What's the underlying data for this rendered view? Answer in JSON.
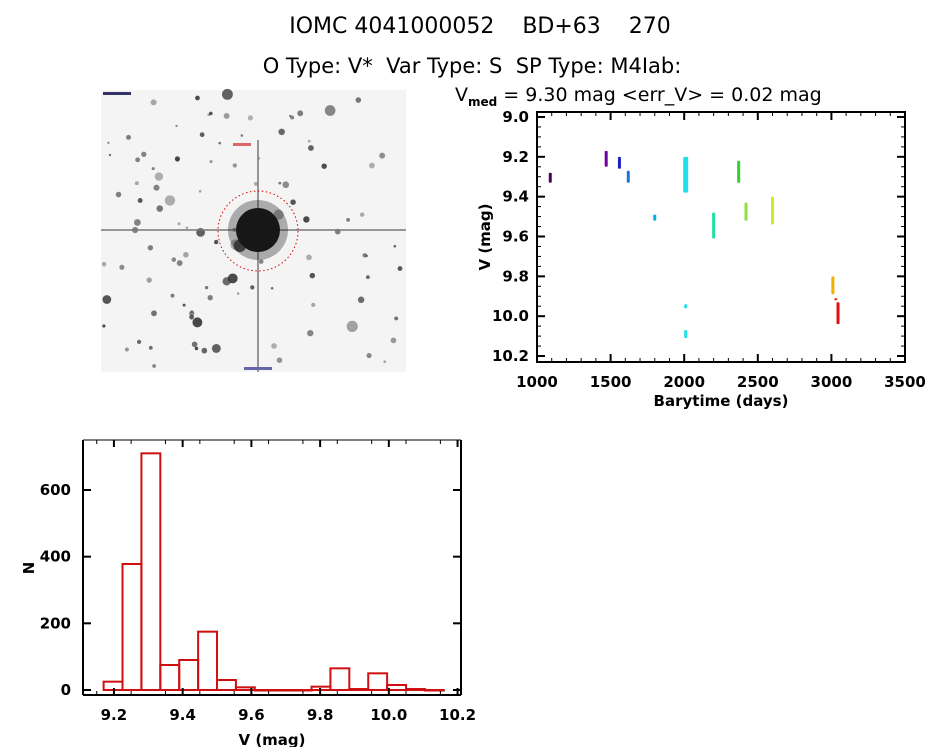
{
  "header": {
    "title": "IOMC 4041000052    BD+63    270",
    "subtitle": "O Type: V*  Var Type: S  SP Type: M4Iab:"
  },
  "image_panel": {
    "description_icon": "star-field-image"
  },
  "chart_data": [
    {
      "type": "scatter",
      "title_prefix": "V",
      "title_sub": "med",
      "title_rest": " = 9.30 mag <err_V> = 0.02 mag",
      "xlabel": "Barytime (days)",
      "ylabel": "V (mag)",
      "xlim": [
        1000,
        3500
      ],
      "ylim": [
        10.23,
        8.975
      ],
      "y_inverted": true,
      "xticks": [
        "1000",
        "1500",
        "2000",
        "2500",
        "3000",
        "3500"
      ],
      "yticks": [
        "9.0",
        "9.2",
        "9.4",
        "9.6",
        "9.8",
        "10.0",
        "10.2"
      ],
      "series": [
        {
          "x": 1090,
          "ymin": 9.28,
          "ymax": 9.33,
          "color": "#4b0060"
        },
        {
          "x": 1470,
          "ymin": 9.17,
          "ymax": 9.25,
          "color": "#7000a0"
        },
        {
          "x": 1560,
          "ymin": 9.2,
          "ymax": 9.26,
          "color": "#2020c0"
        },
        {
          "x": 1620,
          "ymin": 9.27,
          "ymax": 9.33,
          "color": "#2070e0"
        },
        {
          "x": 1800,
          "ymin": 9.49,
          "ymax": 9.52,
          "color": "#00b0e0"
        },
        {
          "x": 2010,
          "ymin": 9.2,
          "ymax": 9.38,
          "color": "#20e0e8"
        },
        {
          "x": 2010,
          "ymin": 9.94,
          "ymax": 9.96,
          "color": "#20e0e8"
        },
        {
          "x": 2010,
          "ymin": 10.07,
          "ymax": 10.11,
          "color": "#20e0e8"
        },
        {
          "x": 2200,
          "ymin": 9.48,
          "ymax": 9.61,
          "color": "#20e0a0"
        },
        {
          "x": 2370,
          "ymin": 9.22,
          "ymax": 9.33,
          "color": "#30d030"
        },
        {
          "x": 2420,
          "ymin": 9.43,
          "ymax": 9.52,
          "color": "#90e040"
        },
        {
          "x": 2600,
          "ymin": 9.4,
          "ymax": 9.54,
          "color": "#c8f020"
        },
        {
          "x": 3010,
          "ymin": 9.8,
          "ymax": 9.89,
          "color": "#f0b000"
        },
        {
          "x": 3030,
          "ymin": 9.91,
          "ymax": 9.92,
          "color": "#e03000"
        },
        {
          "x": 3045,
          "ymin": 9.93,
          "ymax": 10.04,
          "color": "#e01010"
        }
      ]
    },
    {
      "type": "bar",
      "subtype": "histogram",
      "xlabel": "V (mag)",
      "ylabel": "N",
      "xlim": [
        9.11,
        10.21
      ],
      "ylim": [
        -15,
        750
      ],
      "xticks": [
        "9.2",
        "9.4",
        "9.6",
        "9.8",
        "10.0",
        "10.2"
      ],
      "yticks": [
        "0",
        "200",
        "400",
        "600"
      ],
      "bin_start": 9.17,
      "bin_width": 0.055,
      "values": [
        25,
        378,
        710,
        75,
        90,
        175,
        30,
        8,
        0,
        0,
        0,
        10,
        65,
        3,
        50,
        15,
        3,
        0
      ],
      "color": "#d01010"
    }
  ]
}
